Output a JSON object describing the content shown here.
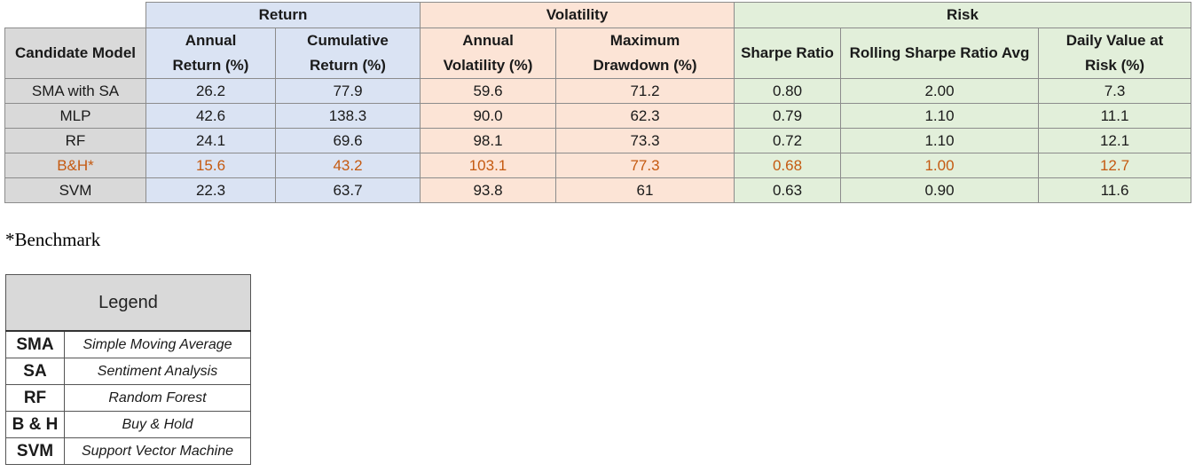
{
  "table": {
    "groups": {
      "return": "Return",
      "volatility": "Volatility",
      "risk": "Risk"
    },
    "headers": {
      "model": "Candidate Model",
      "annual_return_l1": "Annual",
      "annual_return_l2": "Return (%)",
      "cumulative_return_l1": "Cumulative",
      "cumulative_return_l2": "Return (%)",
      "annual_volatility_l1": "Annual",
      "annual_volatility_l2": "Volatility (%)",
      "max_drawdown_l1": "Maximum",
      "max_drawdown_l2": "Drawdown (%)",
      "sharpe": "Sharpe Ratio",
      "rolling_sharpe": "Rolling Sharpe Ratio Avg",
      "var_l1": "Daily Value at",
      "var_l2": "Risk (%)"
    },
    "rows": [
      {
        "model": "SMA with SA",
        "annual_return": "26.2",
        "cumulative_return": "77.9",
        "annual_volatility": "59.6",
        "max_drawdown": "71.2",
        "sharpe": "0.80",
        "rolling_sharpe": "2.00",
        "var": "7.3"
      },
      {
        "model": "MLP",
        "annual_return": "42.6",
        "cumulative_return": "138.3",
        "annual_volatility": "90.0",
        "max_drawdown": "62.3",
        "sharpe": "0.79",
        "rolling_sharpe": "1.10",
        "var": "11.1"
      },
      {
        "model": "RF",
        "annual_return": "24.1",
        "cumulative_return": "69.6",
        "annual_volatility": "98.1",
        "max_drawdown": "73.3",
        "sharpe": "0.72",
        "rolling_sharpe": "1.10",
        "var": "12.1"
      },
      {
        "model": "B&H*",
        "annual_return": "15.6",
        "cumulative_return": "43.2",
        "annual_volatility": "103.1",
        "max_drawdown": "77.3",
        "sharpe": "0.68",
        "rolling_sharpe": "1.00",
        "var": "12.7"
      },
      {
        "model": "SVM",
        "annual_return": "22.3",
        "cumulative_return": "63.7",
        "annual_volatility": "93.8",
        "max_drawdown": "61",
        "sharpe": "0.63",
        "rolling_sharpe": "0.90",
        "var": "11.6"
      }
    ],
    "highlight_row_color": "#c55a11",
    "colors": {
      "return": "#dae3f3",
      "volatility": "#fce4d6",
      "risk": "#e2efda",
      "model": "#d9d9d9"
    }
  },
  "footnote": "*Benchmark",
  "legend": {
    "title": "Legend",
    "items": [
      {
        "abbr": "SMA",
        "full": "Simple Moving Average"
      },
      {
        "abbr": "SA",
        "full": "Sentiment Analysis"
      },
      {
        "abbr": "RF",
        "full": "Random Forest"
      },
      {
        "abbr": "B & H",
        "full": "Buy & Hold"
      },
      {
        "abbr": "SVM",
        "full": "Support Vector Machine"
      }
    ]
  }
}
